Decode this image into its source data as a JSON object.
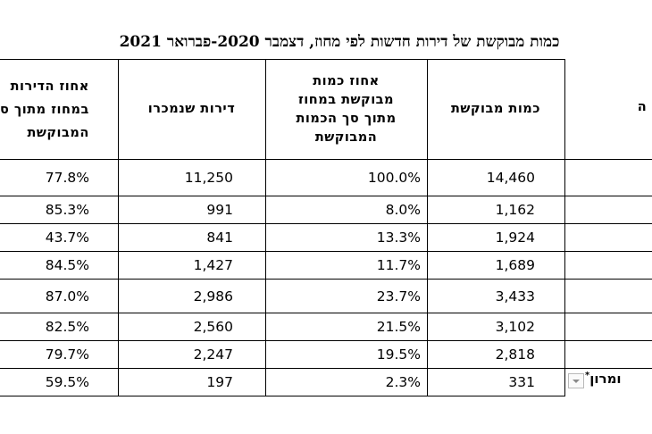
{
  "title": "כמות מבוקשת של דירות חדשות לפי מחוז, דצמבר 2020-פברואר 2021",
  "headers": {
    "col_requested": "כמות מבוקשת",
    "col_pct_of_total": [
      "אחוז כמות",
      "מבוקשת במחוז",
      "מתוך סך הכמות",
      "המבוקשת"
    ],
    "col_sold": "דירות שנמכרו",
    "col_pct_sold": [
      "אחוז הדירות",
      "במחוז מתוך ס",
      "המבוקשת"
    ],
    "col_district_cut": "ה"
  },
  "rows": [
    {
      "requested": "14,460",
      "pct_of_total": "100.0%",
      "sold": "11,250",
      "pct_sold": "77.8%"
    },
    {
      "requested": "1,162",
      "pct_of_total": "8.0%",
      "sold": "991",
      "pct_sold": "85.3%"
    },
    {
      "requested": "1,924",
      "pct_of_total": "13.3%",
      "sold": "841",
      "pct_sold": "43.7%"
    },
    {
      "requested": "1,689",
      "pct_of_total": "11.7%",
      "sold": "1,427",
      "pct_sold": "84.5%"
    },
    {
      "requested": "3,433",
      "pct_of_total": "23.7%",
      "sold": "2,986",
      "pct_sold": "87.0%"
    },
    {
      "requested": "3,102",
      "pct_of_total": "21.5%",
      "sold": "2,560",
      "pct_sold": "82.5%"
    },
    {
      "requested": "2,818",
      "pct_of_total": "19.5%",
      "sold": "2,247",
      "pct_sold": "79.7%"
    },
    {
      "requested": "331",
      "pct_of_total": "2.3%",
      "sold": "197",
      "pct_sold": "59.5%",
      "district_cut": "ומרון",
      "footnote": "*"
    }
  ]
}
